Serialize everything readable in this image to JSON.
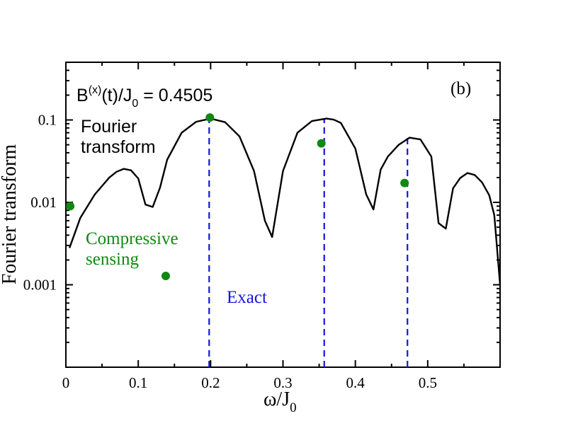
{
  "chart_data": {
    "type": "line",
    "xlabel": "ω/J",
    "xlabel_sub": "0",
    "ylabel": "Fourier transform",
    "xlim": [
      0,
      0.6
    ],
    "ylim_log10": [
      -4,
      -0.3
    ],
    "y_scale": "log",
    "panel_label": "(b)",
    "annotation_field": {
      "prefix": "B",
      "sup": "(x)",
      "mid": "(t)/J",
      "sub": "0",
      "value_text": " = 0.4505"
    },
    "x_ticks": [
      {
        "value": 0,
        "label": "0"
      },
      {
        "value": 0.1,
        "label": "0.1"
      },
      {
        "value": 0.2,
        "label": "0.2"
      },
      {
        "value": 0.3,
        "label": "0.3"
      },
      {
        "value": 0.4,
        "label": "0.4"
      },
      {
        "value": 0.5,
        "label": "0.5"
      }
    ],
    "y_ticks": [
      {
        "value": 0.1,
        "label": "0.1"
      },
      {
        "value": 0.01,
        "label": "0.01"
      },
      {
        "value": 0.001,
        "label": "0.001"
      }
    ],
    "series": [
      {
        "name": "Fourier transform",
        "label_lines": [
          "Fourier",
          "transform"
        ],
        "color": "#000000",
        "x": [
          0.005,
          0.02,
          0.04,
          0.06,
          0.07,
          0.08,
          0.09,
          0.1,
          0.11,
          0.12,
          0.13,
          0.14,
          0.16,
          0.18,
          0.2,
          0.22,
          0.24,
          0.26,
          0.275,
          0.285,
          0.3,
          0.32,
          0.34,
          0.36,
          0.37,
          0.38,
          0.4,
          0.415,
          0.425,
          0.435,
          0.445,
          0.46,
          0.475,
          0.49,
          0.505,
          0.515,
          0.525,
          0.535,
          0.545,
          0.555,
          0.565,
          0.575,
          0.585,
          0.592,
          0.6
        ],
        "y": [
          0.0028,
          0.0065,
          0.0125,
          0.02,
          0.0235,
          0.0255,
          0.0245,
          0.0195,
          0.0094,
          0.0088,
          0.015,
          0.033,
          0.07,
          0.095,
          0.104,
          0.094,
          0.063,
          0.024,
          0.006,
          0.0038,
          0.024,
          0.07,
          0.097,
          0.104,
          0.101,
          0.092,
          0.045,
          0.0125,
          0.0082,
          0.025,
          0.036,
          0.05,
          0.061,
          0.058,
          0.036,
          0.0056,
          0.0048,
          0.0148,
          0.0198,
          0.0227,
          0.0215,
          0.0175,
          0.0122,
          0.007,
          0.001
        ]
      },
      {
        "name": "Compressive sensing",
        "label_lines": [
          "Compressive",
          "sensing"
        ],
        "color": "#118811",
        "type": "scatter",
        "x": [
          0.006,
          0.138,
          0.199,
          0.353,
          0.468
        ],
        "y": [
          0.009,
          0.00128,
          0.107,
          0.052,
          0.0172
        ]
      },
      {
        "name": "Exact",
        "label_lines": [
          "Exact"
        ],
        "color": "#1515dd",
        "type": "vlines",
        "x": [
          0.198,
          0.357,
          0.472
        ],
        "y_top": [
          0.104,
          0.104,
          0.061
        ]
      }
    ]
  }
}
